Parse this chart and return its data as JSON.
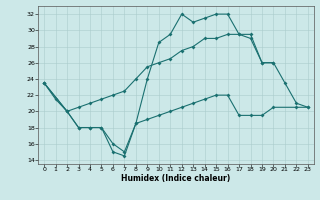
{
  "bg_color": "#cce8e8",
  "line_color": "#1a7070",
  "xlabel": "Humidex (Indice chaleur)",
  "xlim": [
    -0.5,
    23.5
  ],
  "ylim": [
    13.5,
    33.0
  ],
  "yticks": [
    14,
    16,
    18,
    20,
    22,
    24,
    26,
    28,
    30,
    32
  ],
  "xticks": [
    0,
    1,
    2,
    3,
    4,
    5,
    6,
    7,
    8,
    9,
    10,
    11,
    12,
    13,
    14,
    15,
    16,
    17,
    18,
    19,
    20,
    21,
    22,
    23
  ],
  "line1_x": [
    0,
    1,
    2,
    3,
    4,
    5,
    6,
    7,
    8,
    9,
    10,
    11,
    12,
    13,
    14,
    15,
    16,
    17,
    18,
    19,
    20,
    21,
    22,
    23
  ],
  "line1_y": [
    23.5,
    21.5,
    20.0,
    18.0,
    18.0,
    18.0,
    15.0,
    14.5,
    18.5,
    24.0,
    28.5,
    29.5,
    32.0,
    31.0,
    31.5,
    32.0,
    32.0,
    29.5,
    29.0,
    26.0,
    26.0,
    23.5,
    21.0,
    20.5
  ],
  "line2_x": [
    0,
    2,
    3,
    4,
    5,
    6,
    7,
    8,
    9,
    10,
    11,
    12,
    13,
    14,
    15,
    16,
    17,
    18,
    19,
    20
  ],
  "line2_y": [
    23.5,
    20.0,
    20.5,
    21.0,
    21.5,
    22.0,
    22.5,
    24.0,
    25.5,
    26.0,
    26.5,
    27.5,
    28.0,
    29.0,
    29.0,
    29.5,
    29.5,
    29.5,
    26.0,
    26.0
  ],
  "line3_x": [
    0,
    2,
    3,
    4,
    5,
    6,
    7,
    8,
    9,
    10,
    11,
    12,
    13,
    14,
    15,
    16,
    17,
    18,
    19,
    20,
    22,
    23
  ],
  "line3_y": [
    23.5,
    20.0,
    18.0,
    18.0,
    18.0,
    16.0,
    15.0,
    18.5,
    19.0,
    19.5,
    20.0,
    20.5,
    21.0,
    21.5,
    22.0,
    22.0,
    19.5,
    19.5,
    19.5,
    20.5,
    20.5,
    20.5
  ]
}
